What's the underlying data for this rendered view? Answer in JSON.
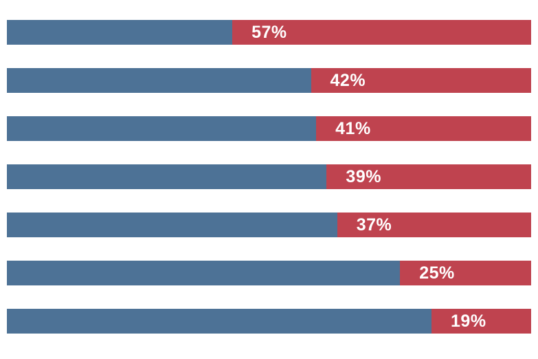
{
  "colors": {
    "background": "#ffffff",
    "blue_segment": "#4d7296",
    "red_segment": "#bf434f",
    "label_text": "#ffffff"
  },
  "chart_data": {
    "type": "bar",
    "orientation": "horizontal",
    "stacked": true,
    "title": "",
    "xlabel": "",
    "ylabel": "",
    "xlim": [
      0,
      100
    ],
    "grid": false,
    "legend": "none",
    "categories": [
      "",
      "",
      "",
      "",
      "",
      "",
      ""
    ],
    "series": [
      {
        "name": "blue-segment",
        "color": "#4d7296",
        "values": [
          43,
          58,
          59,
          61,
          63,
          75,
          81
        ]
      },
      {
        "name": "red-segment",
        "color": "#bf434f",
        "values": [
          57,
          42,
          41,
          39,
          37,
          25,
          19
        ]
      }
    ],
    "data_labels": [
      "57%",
      "42%",
      "41%",
      "39%",
      "37%",
      "25%",
      "19%"
    ],
    "data_label_position": "inside-left-of-red-segment"
  }
}
